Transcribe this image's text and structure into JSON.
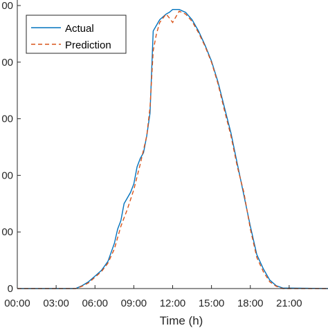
{
  "chart_data": {
    "type": "line",
    "title": "",
    "xlabel": "Time (h)",
    "ylabel": "",
    "x_tick_labels": [
      "00:00",
      "03:00",
      "06:00",
      "09:00",
      "12:00",
      "15:00",
      "18:00",
      "21:00"
    ],
    "x_tick_hours": [
      0,
      3,
      6,
      9,
      12,
      15,
      18,
      21
    ],
    "xlim": [
      0,
      24
    ],
    "y_tick_labels": [
      "0",
      "00",
      "00",
      "00",
      "00",
      "00"
    ],
    "y_tick_values": [
      0,
      1,
      2,
      3,
      4,
      5
    ],
    "ylim": [
      0,
      5
    ],
    "grid": false,
    "legend": {
      "placement": "top-left",
      "entries": [
        "Actual",
        "Prediction"
      ]
    },
    "series": [
      {
        "name": "Actual",
        "color": "#0072BD",
        "style": "solid",
        "x": [
          0,
          4.5,
          5,
          5.5,
          6,
          6.5,
          7,
          7.5,
          7.75,
          8,
          8.25,
          8.5,
          8.75,
          9,
          9.25,
          9.5,
          9.75,
          10,
          10.25,
          10.5,
          10.75,
          11,
          11.25,
          11.5,
          11.75,
          12,
          12.5,
          13,
          13.5,
          14,
          14.5,
          15,
          15.5,
          16,
          16.5,
          17,
          17.5,
          18,
          18.5,
          19,
          19.5,
          20,
          20.5,
          24
        ],
        "y": [
          0,
          0,
          0.05,
          0.12,
          0.22,
          0.32,
          0.48,
          0.8,
          1.05,
          1.2,
          1.5,
          1.6,
          1.7,
          1.85,
          2.15,
          2.3,
          2.4,
          2.7,
          3.1,
          4.55,
          4.65,
          4.75,
          4.8,
          4.85,
          4.88,
          4.93,
          4.93,
          4.88,
          4.75,
          4.55,
          4.3,
          4.02,
          3.65,
          3.2,
          2.75,
          2.2,
          1.65,
          1.1,
          0.6,
          0.35,
          0.15,
          0.05,
          0.01,
          0
        ]
      },
      {
        "name": "Prediction",
        "color": "#D95319",
        "style": "dashed",
        "x": [
          0,
          4.5,
          5,
          5.5,
          6,
          6.5,
          7,
          7.5,
          8,
          8.5,
          9,
          9.5,
          10,
          10.25,
          10.5,
          10.75,
          11,
          11.5,
          11.75,
          12,
          12.5,
          13,
          13.5,
          14,
          14.5,
          15,
          15.5,
          16,
          16.5,
          17,
          17.5,
          18,
          18.5,
          19,
          19.5,
          20,
          20.5,
          24
        ],
        "y": [
          0,
          0,
          0.04,
          0.1,
          0.2,
          0.3,
          0.45,
          0.7,
          1.1,
          1.4,
          1.75,
          2.2,
          2.7,
          3.2,
          4.2,
          4.5,
          4.7,
          4.85,
          4.78,
          4.7,
          4.9,
          4.85,
          4.72,
          4.52,
          4.28,
          4.0,
          3.62,
          3.15,
          2.7,
          2.15,
          1.7,
          1.05,
          0.55,
          0.3,
          0.12,
          0.04,
          0,
          0
        ]
      }
    ]
  }
}
